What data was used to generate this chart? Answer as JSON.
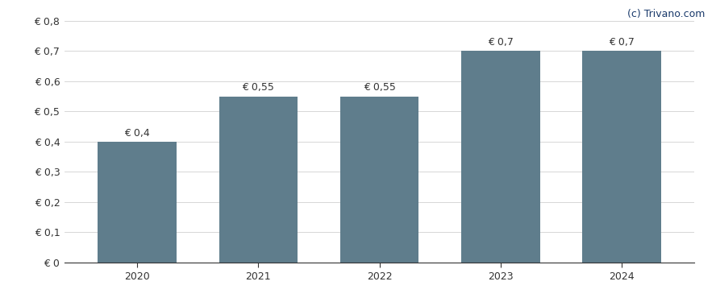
{
  "categories": [
    "2020",
    "2021",
    "2022",
    "2023",
    "2024"
  ],
  "values": [
    0.4,
    0.55,
    0.55,
    0.7,
    0.7
  ],
  "bar_color": "#5f7d8c",
  "bar_width": 0.65,
  "ylim": [
    0,
    0.8
  ],
  "yticks": [
    0,
    0.1,
    0.2,
    0.3,
    0.4,
    0.5,
    0.6,
    0.7,
    0.8
  ],
  "ytick_labels": [
    "€ 0",
    "€ 0,1",
    "€ 0,2",
    "€ 0,3",
    "€ 0,4",
    "€ 0,5",
    "€ 0,6",
    "€ 0,7",
    "€ 0,8"
  ],
  "bar_labels": [
    "€ 0,4",
    "€ 0,55",
    "€ 0,55",
    "€ 0,7",
    "€ 0,7"
  ],
  "watermark": "(c) Trivano.com",
  "background_color": "#ffffff",
  "bar_label_fontsize": 9,
  "tick_fontsize": 9,
  "watermark_fontsize": 9,
  "watermark_color": "#1a3a6b"
}
